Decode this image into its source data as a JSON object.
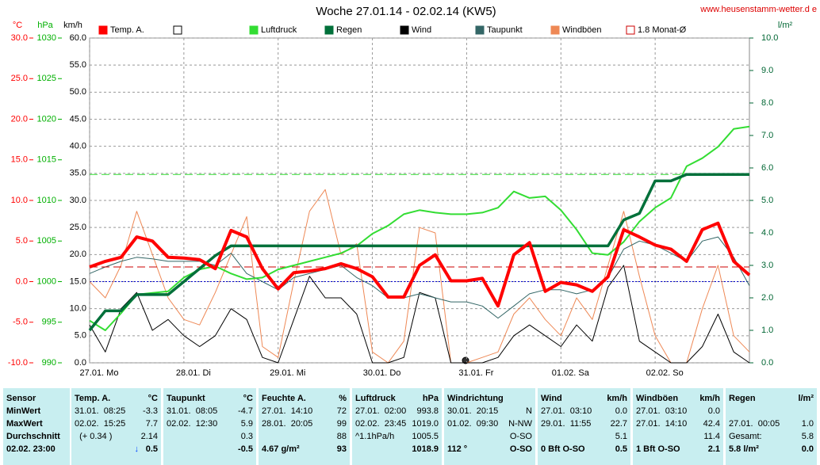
{
  "chart_data": {
    "type": "line",
    "title": "Woche 27.01.14 - 02.02.14 (KW5)",
    "source": "www.heusenstamm-wetter.d e",
    "x": [
      0,
      4,
      8,
      12,
      16,
      20,
      24,
      28,
      32,
      36,
      40,
      44,
      48,
      52,
      56,
      60,
      64,
      68,
      72,
      76,
      80,
      84,
      88,
      92,
      96,
      100,
      104,
      108,
      112,
      116,
      120,
      124,
      128,
      132,
      136,
      140,
      144,
      148,
      152,
      156,
      160,
      164,
      168
    ],
    "xlim": [
      0,
      168
    ],
    "xticks": [
      {
        "value": 0,
        "label": "27.01. Mo"
      },
      {
        "value": 24,
        "label": "28.01. Di"
      },
      {
        "value": 48,
        "label": "29.01. Mi"
      },
      {
        "value": 72,
        "label": "30.01. Do"
      },
      {
        "value": 96,
        "label": "31.01. Fr"
      },
      {
        "value": 120,
        "label": "01.02. Sa"
      },
      {
        "value": 144,
        "label": "02.02. So"
      }
    ],
    "grid": true,
    "ylabel": "km/h",
    "ylim": [
      0,
      60
    ],
    "yticks": [
      {
        "value": 0,
        "label": "0.0"
      },
      {
        "value": 5,
        "label": "5.0"
      },
      {
        "value": 10,
        "label": "10.0"
      },
      {
        "value": 15,
        "label": "15.0"
      },
      {
        "value": 20,
        "label": "20.0"
      },
      {
        "value": 25,
        "label": "25.0"
      },
      {
        "value": 30,
        "label": "30.0"
      },
      {
        "value": 35,
        "label": "35.0"
      },
      {
        "value": 40,
        "label": "40.0"
      },
      {
        "value": 45,
        "label": "45.0"
      },
      {
        "value": 50,
        "label": "50.0"
      },
      {
        "value": 55,
        "label": "55.0"
      },
      {
        "value": 60,
        "label": "60.0"
      }
    ],
    "y2label": "l/m²",
    "y2lim": [
      0,
      10
    ],
    "y2ticks": [
      {
        "value": 0,
        "label": "0.0"
      },
      {
        "value": 1,
        "label": "1.0"
      },
      {
        "value": 2,
        "label": "2.0"
      },
      {
        "value": 3,
        "label": "3.0"
      },
      {
        "value": 4,
        "label": "4.0"
      },
      {
        "value": 5,
        "label": "5.0"
      },
      {
        "value": 6,
        "label": "6.0"
      },
      {
        "value": 7,
        "label": "7.0"
      },
      {
        "value": 8,
        "label": "8.0"
      },
      {
        "value": 9,
        "label": "9.0"
      },
      {
        "value": 10,
        "label": "10.0"
      }
    ],
    "temp_axis": {
      "label": "°C",
      "color": "#ff0000",
      "lim": [
        -10,
        30
      ],
      "ticks": [
        {
          "value": -10,
          "label": "-10.0"
        },
        {
          "value": -5,
          "label": "-5.0"
        },
        {
          "value": 0,
          "label": "0.0"
        },
        {
          "value": 5,
          "label": "5.0"
        },
        {
          "value": 10,
          "label": "10.0"
        },
        {
          "value": 15,
          "label": "15.0"
        },
        {
          "value": 20,
          "label": "20.0"
        },
        {
          "value": 25,
          "label": "25.0"
        },
        {
          "value": 30,
          "label": "30.0"
        }
      ]
    },
    "hpa_axis": {
      "label": "hPa",
      "color": "#00b000",
      "lim": [
        990,
        1030
      ],
      "ticks": [
        990,
        995,
        1000,
        1005,
        1010,
        1015,
        1020,
        1025,
        1030
      ]
    },
    "freeze_line": 0,
    "rain_total_line": 5.8,
    "series": [
      {
        "name": "Temp. A.",
        "color": "#ff0000",
        "axis": "temp",
        "width": 4,
        "values": [
          1.8,
          2.5,
          3.0,
          5.5,
          5.0,
          3.0,
          2.9,
          2.7,
          1.6,
          6.3,
          5.5,
          1.6,
          -0.9,
          1.1,
          1.3,
          1.6,
          2.2,
          1.6,
          0.6,
          -1.9,
          -1.9,
          2.0,
          3.3,
          0.1,
          0.1,
          0.4,
          -3.0,
          3.3,
          4.8,
          -1.2,
          -0.1,
          -0.4,
          -1.2,
          0.6,
          6.4,
          5.5,
          4.5,
          4.0,
          2.5,
          6.4,
          7.2,
          2.5,
          0.8
        ]
      },
      {
        "name": "Luftdruck",
        "color": "#33dd33",
        "axis": "hpa",
        "width": 2,
        "values": [
          995.2,
          994.0,
          996.1,
          998.4,
          998.6,
          998.8,
          1000.5,
          1001.5,
          1001.9,
          1001.0,
          1000.3,
          1000.5,
          1001.5,
          1002.0,
          1002.5,
          1003.0,
          1003.5,
          1004.4,
          1005.9,
          1006.9,
          1008.3,
          1008.8,
          1008.5,
          1008.3,
          1008.3,
          1008.5,
          1009.1,
          1011.1,
          1010.3,
          1010.5,
          1008.8,
          1006.4,
          1003.5,
          1003.3,
          1004.9,
          1007.4,
          1009.1,
          1010.3,
          1014.2,
          1015.2,
          1016.6,
          1018.8,
          1019.1
        ]
      },
      {
        "name": "Regen",
        "color": "#00703a",
        "axis": "y2",
        "width": 3.5,
        "values": [
          1.0,
          1.6,
          1.6,
          2.1,
          2.1,
          2.1,
          2.5,
          2.9,
          3.3,
          3.6,
          3.6,
          3.6,
          3.6,
          3.6,
          3.6,
          3.6,
          3.6,
          3.6,
          3.6,
          3.6,
          3.6,
          3.6,
          3.6,
          3.6,
          3.6,
          3.6,
          3.6,
          3.6,
          3.6,
          3.6,
          3.6,
          3.6,
          3.6,
          3.6,
          4.4,
          4.6,
          5.6,
          5.6,
          5.8,
          5.8,
          5.8,
          5.8,
          5.8
        ]
      },
      {
        "name": "Wind",
        "color": "#000000",
        "axis": "y",
        "width": 1,
        "values": [
          7,
          2,
          10,
          13,
          6,
          8,
          5,
          3,
          5,
          10,
          8,
          1,
          0,
          8,
          16,
          12,
          12,
          9,
          0,
          0,
          1,
          13,
          12,
          0,
          0,
          0,
          1,
          5,
          7,
          5,
          3,
          7,
          4,
          14,
          18,
          4,
          2,
          0,
          0,
          3,
          9,
          2,
          0
        ]
      },
      {
        "name": "Taupunkt",
        "color": "#336666",
        "axis": "temp",
        "width": 1,
        "values": [
          1.0,
          1.8,
          2.5,
          3.0,
          2.8,
          2.5,
          2.5,
          2.5,
          2.0,
          3.5,
          1.0,
          0.0,
          -1.0,
          0.5,
          1.0,
          1.5,
          2.0,
          0.5,
          -0.5,
          -2.0,
          -2.0,
          -1.5,
          -2.0,
          -2.5,
          -2.5,
          -3.0,
          -4.5,
          -3.0,
          -1.5,
          -1.0,
          -1.0,
          -1.5,
          -1.0,
          0.5,
          4.0,
          5.0,
          4.5,
          3.5,
          2.5,
          5.0,
          5.5,
          3.0,
          -0.5
        ]
      },
      {
        "name": "Windböen",
        "color": "#ee8855",
        "axis": "y",
        "width": 1,
        "values": [
          15,
          12,
          18,
          28,
          20,
          12,
          8,
          7,
          13,
          20,
          27,
          3,
          1,
          15,
          28,
          32,
          20,
          22,
          2,
          0,
          4,
          25,
          24,
          0,
          0,
          1,
          2,
          9,
          12,
          8,
          5,
          12,
          8,
          18,
          28,
          16,
          5,
          0,
          0,
          10,
          18,
          5,
          2
        ]
      },
      {
        "name": "1.8 Monat-Ø",
        "color": "#cc0000",
        "axis": "temp",
        "hline": 1.8
      }
    ]
  },
  "table": {
    "header": [
      {
        "l": "Sensor"
      },
      {
        "l": "Temp. A.",
        "r": "°C"
      },
      {
        "l": "Taupunkt",
        "r": "°C"
      },
      {
        "l": "Feuchte A.",
        "r": "%"
      },
      {
        "l": "Luftdruck",
        "r": "hPa"
      },
      {
        "l": "Windrichtung"
      },
      {
        "l": "Wind",
        "r": "km/h"
      },
      {
        "l": "Windböen",
        "r": "km/h"
      },
      {
        "l": "Regen",
        "r": "l/m²"
      }
    ],
    "rows": [
      [
        {
          "l": "MinWert"
        },
        {
          "l": "31.01.  08:25",
          "r": "-3.3"
        },
        {
          "l": "31.01.  08:05",
          "r": "-4.7"
        },
        {
          "l": "27.01.  14:10",
          "r": "72"
        },
        {
          "l": "27.01.  02:00",
          "r": "993.8"
        },
        {
          "l": "30.01.  20:15",
          "r": "N"
        },
        {
          "l": "27.01.  03:10",
          "r": "0.0"
        },
        {
          "l": "27.01.  03:10",
          "r": "0.0"
        },
        null
      ],
      [
        {
          "l": "MaxWert"
        },
        {
          "l": "02.02.  15:25",
          "r": "7.7"
        },
        {
          "l": "02.02.  12:30",
          "r": "5.9"
        },
        {
          "l": "28.01.  20:05",
          "r": "99"
        },
        {
          "l": "02.02.  23:45",
          "r": "1019.0"
        },
        {
          "l": "01.02.  09:30",
          "r": "N-NW"
        },
        {
          "l": "29.01.  11:55",
          "r": "22.7"
        },
        {
          "l": "27.01.  14:10",
          "r": "42.4"
        },
        {
          "l": "27.01.  00:05",
          "r": "1.0"
        }
      ],
      [
        {
          "l": "Durchschnitt"
        },
        {
          "l": "  (+ 0.34 )",
          "r": "2.14"
        },
        {
          "r": "0.3"
        },
        {
          "r": "88"
        },
        {
          "l": "^1.1hPa/h",
          "r": "1005.5"
        },
        {
          "r": "O-SO"
        },
        {
          "r": "5.1"
        },
        {
          "r": "11.4"
        },
        {
          "l": "Gesamt:",
          "r": "5.8"
        }
      ],
      [
        {
          "l": "02.02. 23:00"
        },
        {
          "a": "↓",
          "r": "0.5"
        },
        {
          "r": "-0.5"
        },
        {
          "l": "4.67 g/m²",
          "r": "93"
        },
        {
          "r": "1018.9"
        },
        {
          "l": "112 °",
          "r": "O-SO"
        },
        {
          "l": "0 Bft O-SO",
          "r": "0.5"
        },
        {
          "l": "1 Bft O-SO",
          "r": "2.1"
        },
        {
          "l": "5.8 l/m²",
          "r": "0.0"
        }
      ]
    ]
  }
}
